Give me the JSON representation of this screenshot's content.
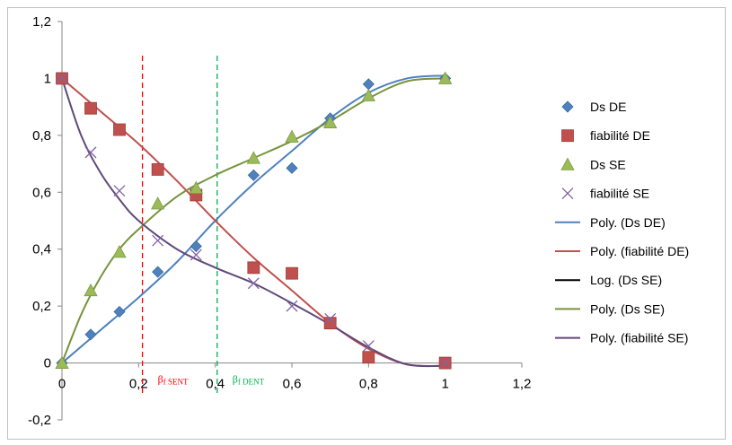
{
  "chart_data": {
    "type": "scatter",
    "xlim": [
      0,
      1.2
    ],
    "ylim": [
      -0.2,
      1.2
    ],
    "x_ticks": [
      "0",
      "0,2",
      "0,4",
      "0,6",
      "0,8",
      "1",
      "1,2"
    ],
    "y_ticks": [
      "-0,2",
      "0",
      "0,2",
      "0,4",
      "0,6",
      "0,8",
      "1",
      "1,2"
    ],
    "grid": false,
    "legend_position": "right",
    "series": [
      {
        "name": "Ds DE",
        "marker": "diamond",
        "color": "#4f81bd",
        "x": [
          0,
          0.075,
          0.15,
          0.25,
          0.35,
          0.5,
          0.6,
          0.7,
          0.8,
          1.0
        ],
        "y": [
          0,
          0.1,
          0.18,
          0.32,
          0.41,
          0.66,
          0.685,
          0.86,
          0.98,
          1.0
        ]
      },
      {
        "name": "fiabilité DE",
        "marker": "square",
        "color": "#c0504d",
        "x": [
          0,
          0.075,
          0.15,
          0.25,
          0.35,
          0.5,
          0.6,
          0.7,
          0.8,
          1.0
        ],
        "y": [
          1.0,
          0.895,
          0.82,
          0.68,
          0.59,
          0.335,
          0.315,
          0.14,
          0.02,
          0
        ]
      },
      {
        "name": "Ds SE",
        "marker": "triangle",
        "color": "#9bbb59",
        "x": [
          0,
          0.075,
          0.15,
          0.25,
          0.35,
          0.5,
          0.6,
          0.7,
          0.8,
          1.0
        ],
        "y": [
          0,
          0.255,
          0.39,
          0.56,
          0.615,
          0.72,
          0.795,
          0.845,
          0.94,
          1.0
        ]
      },
      {
        "name": "fiabilité SE",
        "marker": "x",
        "color": "#8064a2",
        "x": [
          0,
          0.075,
          0.15,
          0.25,
          0.35,
          0.5,
          0.6,
          0.7,
          0.8,
          1.0
        ],
        "y": [
          1.0,
          0.74,
          0.605,
          0.43,
          0.38,
          0.28,
          0.2,
          0.155,
          0.06,
          0
        ]
      }
    ],
    "trendlines": [
      {
        "name": "Poly. (Ds DE)",
        "color": "#4f81bd",
        "x": [
          0,
          0.1,
          0.2,
          0.3,
          0.4,
          0.5,
          0.6,
          0.7,
          0.8,
          0.9,
          1.0
        ],
        "y": [
          0,
          0.115,
          0.23,
          0.355,
          0.5,
          0.63,
          0.745,
          0.86,
          0.95,
          1.0,
          1.01
        ]
      },
      {
        "name": "Poly. (fiabilité DE)",
        "color": "#c0504d",
        "x": [
          0,
          0.1,
          0.2,
          0.3,
          0.4,
          0.5,
          0.6,
          0.7,
          0.8,
          0.9,
          1.0
        ],
        "y": [
          1.0,
          0.885,
          0.77,
          0.64,
          0.5,
          0.37,
          0.255,
          0.14,
          0.05,
          -0.005,
          -0.01
        ]
      },
      {
        "name": "Log. (Ds SE)",
        "color": "#000000",
        "x": [],
        "y": []
      },
      {
        "name": "Poly. (Ds SE)",
        "color": "#77933c",
        "x": [
          0,
          0.05,
          0.1,
          0.15,
          0.2,
          0.3,
          0.4,
          0.5,
          0.6,
          0.7,
          0.8,
          0.9,
          1.0
        ],
        "y": [
          0,
          0.17,
          0.3,
          0.4,
          0.47,
          0.585,
          0.66,
          0.72,
          0.78,
          0.85,
          0.93,
          0.99,
          1.0
        ]
      },
      {
        "name": "Poly. (fiabilité SE)",
        "color": "#60497a",
        "x": [
          0,
          0.05,
          0.1,
          0.15,
          0.2,
          0.3,
          0.4,
          0.5,
          0.6,
          0.7,
          0.8,
          0.9,
          1.0
        ],
        "y": [
          1.0,
          0.8,
          0.67,
          0.575,
          0.5,
          0.4,
          0.335,
          0.28,
          0.21,
          0.135,
          0.055,
          -0.005,
          -0.01
        ]
      }
    ],
    "reference_lines": [
      {
        "x": 0.21,
        "color": "#ff0000",
        "label_main": "β",
        "label_sub": "f SENT"
      },
      {
        "x": 0.405,
        "color": "#00b050",
        "label_main": "β",
        "label_sub": "f DENT"
      }
    ],
    "legend": [
      {
        "label": "Ds DE",
        "kind": "diamond",
        "color": "#4f81bd"
      },
      {
        "label": "fiabilité DE",
        "kind": "square",
        "color": "#c0504d"
      },
      {
        "label": "Ds SE",
        "kind": "triangle",
        "color": "#9bbb59"
      },
      {
        "label": "fiabilité SE",
        "kind": "x",
        "color": "#8064a2"
      },
      {
        "label": "Poly. (Ds DE)",
        "kind": "line",
        "color": "#4f81bd"
      },
      {
        "label": "Poly. (fiabilité DE)",
        "kind": "line",
        "color": "#c0504d"
      },
      {
        "label": "Log. (Ds SE)",
        "kind": "line",
        "color": "#000000"
      },
      {
        "label": "Poly. (Ds SE)",
        "kind": "line",
        "color": "#77933c"
      },
      {
        "label": "Poly. (fiabilité SE)",
        "kind": "line",
        "color": "#60497a"
      }
    ]
  }
}
